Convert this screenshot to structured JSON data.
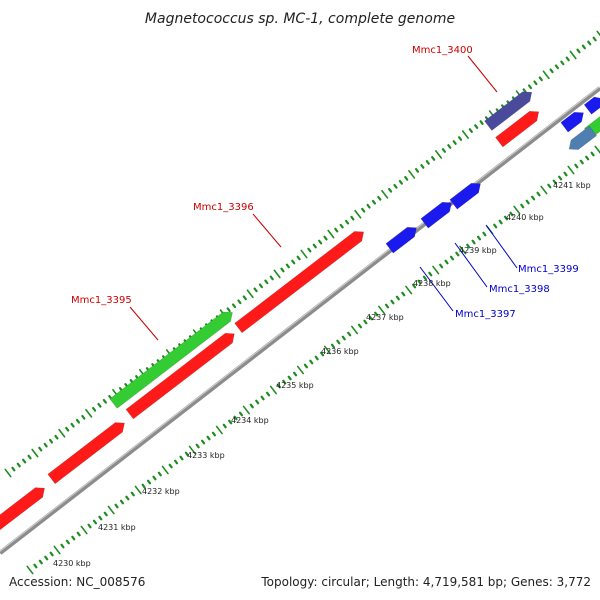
{
  "title": "Magnetococcus sp. MC-1, complete genome",
  "footer": {
    "accession": "Accession: NC_008576",
    "summary": "Topology: circular; Length: 4,719,581 bp; Genes: 3,772"
  },
  "colors": {
    "background": "#ffffff",
    "backbone": "#8c8c8c",
    "tick": "#1e8c1e",
    "gene_red": "#ff1a1a",
    "gene_blue": "#1a1aee",
    "gene_green": "#33cc33",
    "gene_slate": "#4a4a9c",
    "gene_steel": "#4f7fb0",
    "label_red": "#cc0000",
    "label_blue": "#0000cc"
  },
  "kbp_labels": [
    "4230 kbp",
    "4231 kbp",
    "4232 kbp",
    "4233 kbp",
    "4234 kbp",
    "4235 kbp",
    "4236 kbp",
    "4237 kbp",
    "4238 kbp",
    "4239 kbp",
    "4240 kbp",
    "4241 kbp"
  ],
  "gene_labels": [
    {
      "name": "Mmc1_3395",
      "color": "red"
    },
    {
      "name": "Mmc1_3396",
      "color": "red"
    },
    {
      "name": "Mmc1_3400",
      "color": "red"
    },
    {
      "name": "Mmc1_3397",
      "color": "blue"
    },
    {
      "name": "Mmc1_3398",
      "color": "blue"
    },
    {
      "name": "Mmc1_3399",
      "color": "blue"
    }
  ]
}
